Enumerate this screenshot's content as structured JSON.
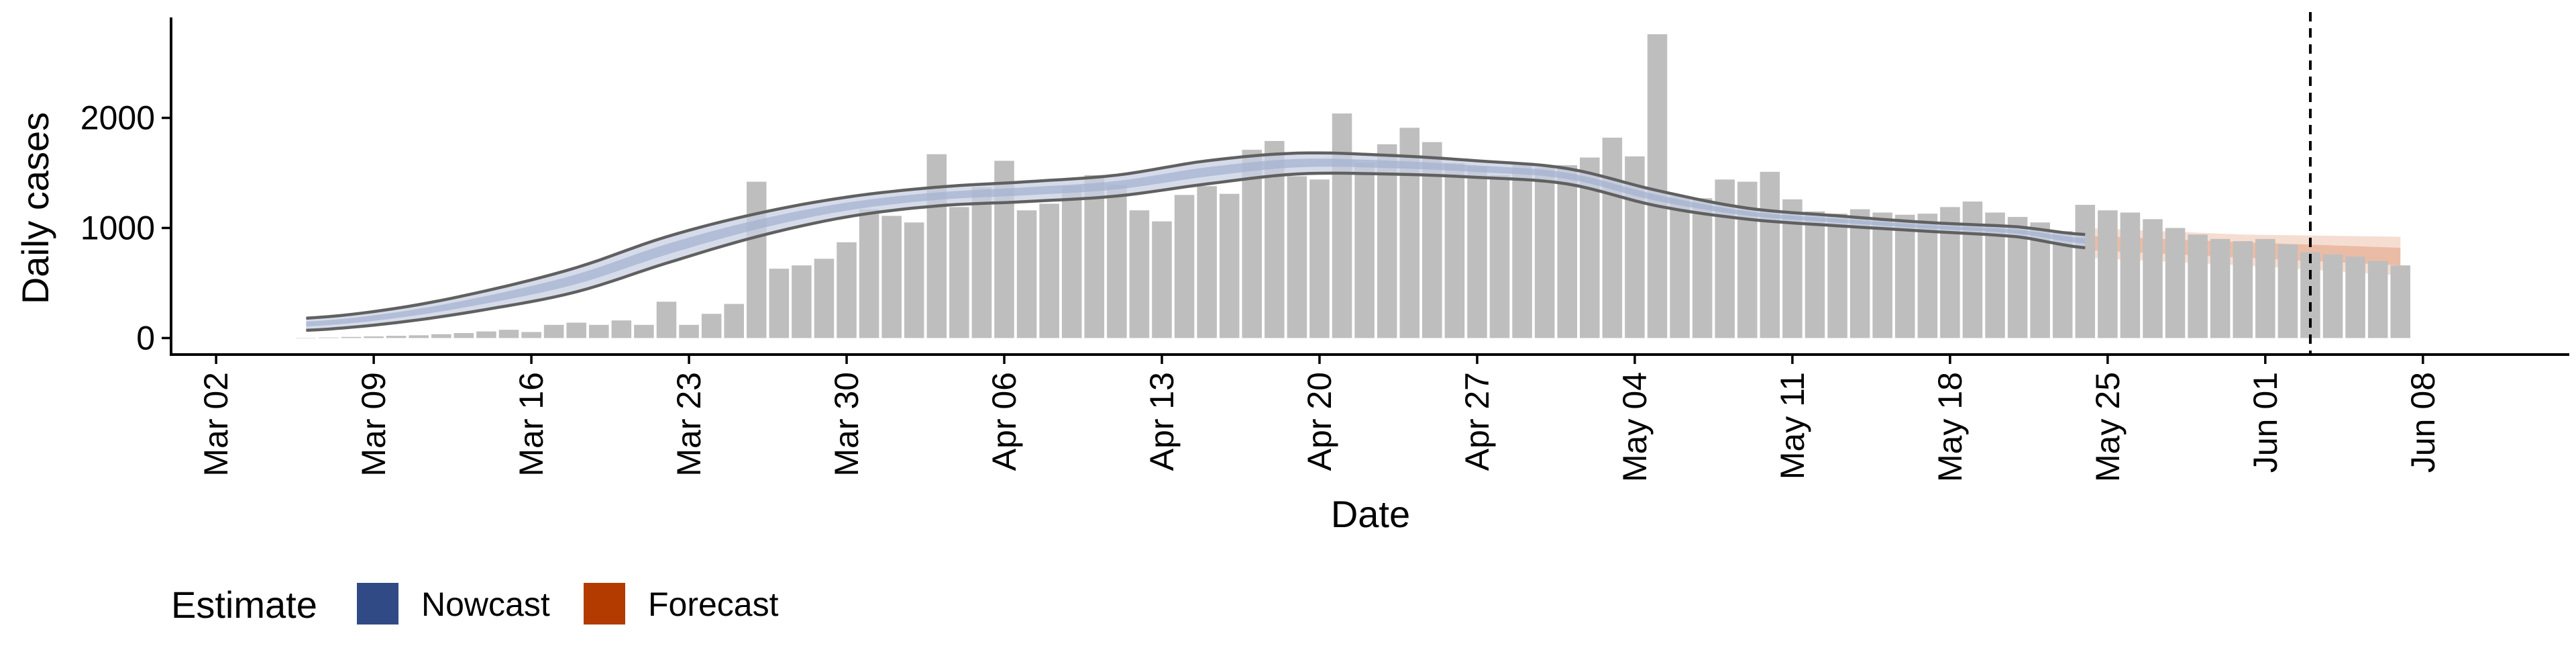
{
  "chart_data": {
    "type": "bar",
    "title": "",
    "xlabel": "Date",
    "ylabel": "Daily cases",
    "x_ticks": [
      "Mar 02",
      "Mar 09",
      "Mar 16",
      "Mar 23",
      "Mar 30",
      "Apr 06",
      "Apr 13",
      "Apr 20",
      "Apr 27",
      "May 04",
      "May 11",
      "May 18",
      "May 25",
      "Jun 01",
      "Jun 08"
    ],
    "y_ticks": [
      0,
      1000,
      2000
    ],
    "ylim": [
      -150,
      2900
    ],
    "xlim": [
      "2020-03-02",
      "2020-06-08"
    ],
    "grid": false,
    "legend": {
      "title": "Estimate",
      "placement": "bottom-left",
      "items": [
        {
          "label": "Nowcast",
          "color": "#2F4A85"
        },
        {
          "label": "Forecast",
          "color": "#B33B00"
        }
      ]
    },
    "vline_date": "2020-06-03",
    "bars": {
      "color": "#BEBEBE",
      "start_date": "2020-03-06",
      "values": [
        2,
        5,
        10,
        15,
        20,
        25,
        35,
        45,
        60,
        75,
        55,
        120,
        140,
        120,
        160,
        120,
        330,
        120,
        220,
        310,
        1420,
        630,
        660,
        720,
        870,
        1170,
        1110,
        1050,
        1670,
        1190,
        1370,
        1610,
        1160,
        1220,
        1380,
        1480,
        1390,
        1160,
        1060,
        1300,
        1380,
        1310,
        1710,
        1790,
        1470,
        1440,
        2040,
        1590,
        1760,
        1910,
        1780,
        1590,
        1560,
        1480,
        1590,
        1550,
        1570,
        1640,
        1820,
        1650,
        2760,
        1290,
        1270,
        1440,
        1420,
        1510,
        1260,
        1150,
        1130,
        1170,
        1140,
        1120,
        1130,
        1190,
        1240,
        1140,
        1100,
        1050,
        970,
        1210,
        1160,
        1140,
        1080,
        1000,
        940,
        900,
        880,
        900,
        850,
        780,
        760,
        740,
        700,
        660
      ]
    },
    "nowcast": {
      "start_date": "2020-03-06",
      "end_date": "2020-05-24",
      "knots": [
        {
          "d": 0,
          "lo": 70,
          "hi": 180
        },
        {
          "d": 4,
          "lo": 140,
          "hi": 270
        },
        {
          "d": 8,
          "lo": 260,
          "hi": 430
        },
        {
          "d": 12,
          "lo": 420,
          "hi": 640
        },
        {
          "d": 16,
          "lo": 680,
          "hi": 920
        },
        {
          "d": 20,
          "lo": 920,
          "hi": 1130
        },
        {
          "d": 24,
          "lo": 1100,
          "hi": 1280
        },
        {
          "d": 28,
          "lo": 1200,
          "hi": 1370
        },
        {
          "d": 32,
          "lo": 1240,
          "hi": 1420
        },
        {
          "d": 36,
          "lo": 1290,
          "hi": 1480
        },
        {
          "d": 40,
          "lo": 1400,
          "hi": 1610
        },
        {
          "d": 44,
          "lo": 1490,
          "hi": 1680
        },
        {
          "d": 48,
          "lo": 1490,
          "hi": 1660
        },
        {
          "d": 52,
          "lo": 1460,
          "hi": 1610
        },
        {
          "d": 56,
          "lo": 1400,
          "hi": 1540
        },
        {
          "d": 60,
          "lo": 1200,
          "hi": 1340
        },
        {
          "d": 64,
          "lo": 1080,
          "hi": 1180
        },
        {
          "d": 68,
          "lo": 1020,
          "hi": 1110
        },
        {
          "d": 72,
          "lo": 970,
          "hi": 1050
        },
        {
          "d": 76,
          "lo": 920,
          "hi": 1010
        },
        {
          "d": 79,
          "lo": 820,
          "hi": 940
        }
      ]
    },
    "forecast": {
      "start_date": "2020-05-24",
      "end_date": "2020-06-07",
      "outer": [
        {
          "d": 0,
          "lo": 730,
          "hi": 1000
        },
        {
          "d": 7,
          "lo": 660,
          "hi": 940
        },
        {
          "d": 14,
          "lo": 570,
          "hi": 920
        }
      ],
      "inner": [
        {
          "d": 0,
          "lo": 800,
          "hi": 930
        },
        {
          "d": 7,
          "lo": 730,
          "hi": 870
        },
        {
          "d": 14,
          "lo": 660,
          "hi": 820
        }
      ]
    }
  }
}
